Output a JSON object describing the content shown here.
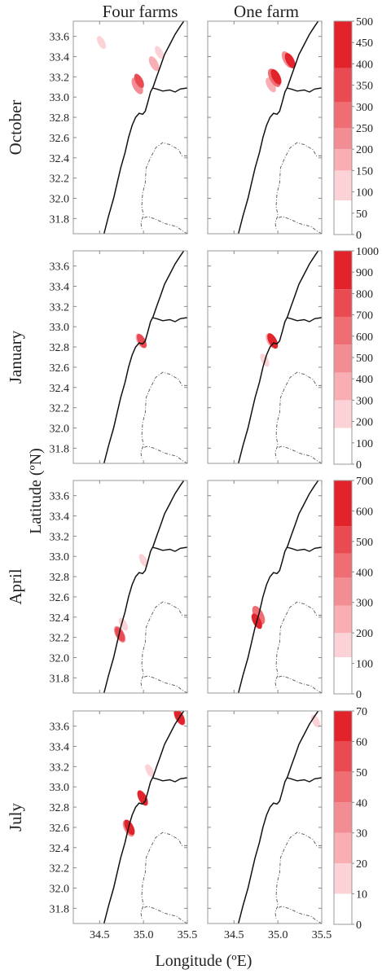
{
  "figure": {
    "column_titles": [
      "Four farms",
      "One farm"
    ],
    "row_titles": [
      "October",
      "January",
      "April",
      "July"
    ],
    "xlabel": "Longitude (ºE)",
    "ylabel": "Latitude (ºN)"
  },
  "chart_data": {
    "type": "heatmap",
    "xlabel": "Longitude (ºE)",
    "ylabel": "Latitude (ºN)",
    "xlim": [
      34.2,
      35.5
    ],
    "ylim": [
      31.65,
      33.75
    ],
    "x_ticks": [
      "34.5",
      "35.0",
      "35.5"
    ],
    "y_ticks": [
      "31.8",
      "32.0",
      "32.2",
      "32.4",
      "32.6",
      "32.8",
      "33.0",
      "33.2",
      "33.4",
      "33.6"
    ],
    "grid": false,
    "colormap": [
      "#ffffff",
      "#fbd3d6",
      "#f8aeb3",
      "#f28d93",
      "#ee6e74",
      "#ea4a51",
      "#e3232b"
    ],
    "rows": [
      {
        "name": "October",
        "colorbar_ticks": [
          "0",
          "50",
          "100",
          "150",
          "200",
          "250",
          "300",
          "350",
          "400",
          "450",
          "500"
        ],
        "colorbar_levels": [
          0,
          80,
          150,
          200,
          250,
          310,
          390,
          500
        ],
        "panels": [
          {
            "column": "Four farms",
            "blobs": [
              {
                "lon": 34.52,
                "lat": 33.54,
                "level": 1
              },
              {
                "lon": 35.18,
                "lat": 33.44,
                "level": 1
              },
              {
                "lon": 35.12,
                "lat": 33.33,
                "level": 2
              },
              {
                "lon": 34.93,
                "lat": 33.11,
                "level": 3
              },
              {
                "lon": 34.95,
                "lat": 33.16,
                "level": 5
              }
            ]
          },
          {
            "column": "One farm",
            "blobs": [
              {
                "lon": 35.11,
                "lat": 33.37,
                "level": 3
              },
              {
                "lon": 35.14,
                "lat": 33.36,
                "level": 6
              },
              {
                "lon": 34.92,
                "lat": 33.12,
                "level": 2
              },
              {
                "lon": 34.96,
                "lat": 33.19,
                "level": 4
              },
              {
                "lon": 34.98,
                "lat": 33.2,
                "level": 6
              }
            ]
          }
        ]
      },
      {
        "name": "January",
        "colorbar_ticks": [
          "0",
          "100",
          "200",
          "300",
          "400",
          "500",
          "600",
          "700",
          "800",
          "900",
          "1000"
        ],
        "colorbar_levels": [
          0,
          170,
          300,
          430,
          560,
          690,
          820,
          1000
        ],
        "panels": [
          {
            "column": "Four farms",
            "blobs": [
              {
                "lon": 34.97,
                "lat": 32.86,
                "level": 2
              },
              {
                "lon": 34.98,
                "lat": 32.86,
                "level": 5
              }
            ]
          },
          {
            "column": "One farm",
            "blobs": [
              {
                "lon": 34.92,
                "lat": 32.86,
                "level": 2
              },
              {
                "lon": 34.94,
                "lat": 32.86,
                "level": 6
              },
              {
                "lon": 34.85,
                "lat": 32.67,
                "level": 1
              }
            ]
          }
        ]
      },
      {
        "name": "April",
        "colorbar_ticks": [
          "0",
          "100",
          "200",
          "300",
          "400",
          "500",
          "600",
          "700"
        ],
        "colorbar_levels": [
          0,
          120,
          200,
          290,
          380,
          460,
          550,
          700
        ],
        "panels": [
          {
            "column": "Four farms",
            "blobs": [
              {
                "lon": 35.0,
                "lat": 32.96,
                "level": 1
              },
              {
                "lon": 34.77,
                "lat": 32.33,
                "level": 1
              },
              {
                "lon": 34.73,
                "lat": 32.23,
                "level": 3
              },
              {
                "lon": 34.73,
                "lat": 32.23,
                "level": 5
              }
            ]
          },
          {
            "column": "One farm",
            "blobs": [
              {
                "lon": 34.79,
                "lat": 32.4,
                "level": 2
              },
              {
                "lon": 34.78,
                "lat": 32.42,
                "level": 4
              },
              {
                "lon": 34.76,
                "lat": 32.36,
                "level": 6
              }
            ]
          }
        ]
      },
      {
        "name": "July",
        "colorbar_ticks": [
          "0",
          "10",
          "20",
          "30",
          "40",
          "50",
          "60",
          "70"
        ],
        "colorbar_levels": [
          0,
          10,
          20,
          30,
          40,
          50,
          60,
          70
        ],
        "panels": [
          {
            "column": "Four farms",
            "blobs": [
              {
                "lon": 35.41,
                "lat": 33.69,
                "level": 3
              },
              {
                "lon": 35.41,
                "lat": 33.69,
                "level": 6
              },
              {
                "lon": 35.07,
                "lat": 33.16,
                "level": 1
              },
              {
                "lon": 34.99,
                "lat": 32.89,
                "level": 2
              },
              {
                "lon": 34.99,
                "lat": 32.89,
                "level": 6
              },
              {
                "lon": 34.83,
                "lat": 32.59,
                "level": 3
              },
              {
                "lon": 34.84,
                "lat": 32.6,
                "level": 6
              }
            ]
          },
          {
            "column": "One farm",
            "blobs": [
              {
                "lon": 35.43,
                "lat": 33.65,
                "level": 1
              }
            ]
          }
        ]
      }
    ]
  }
}
